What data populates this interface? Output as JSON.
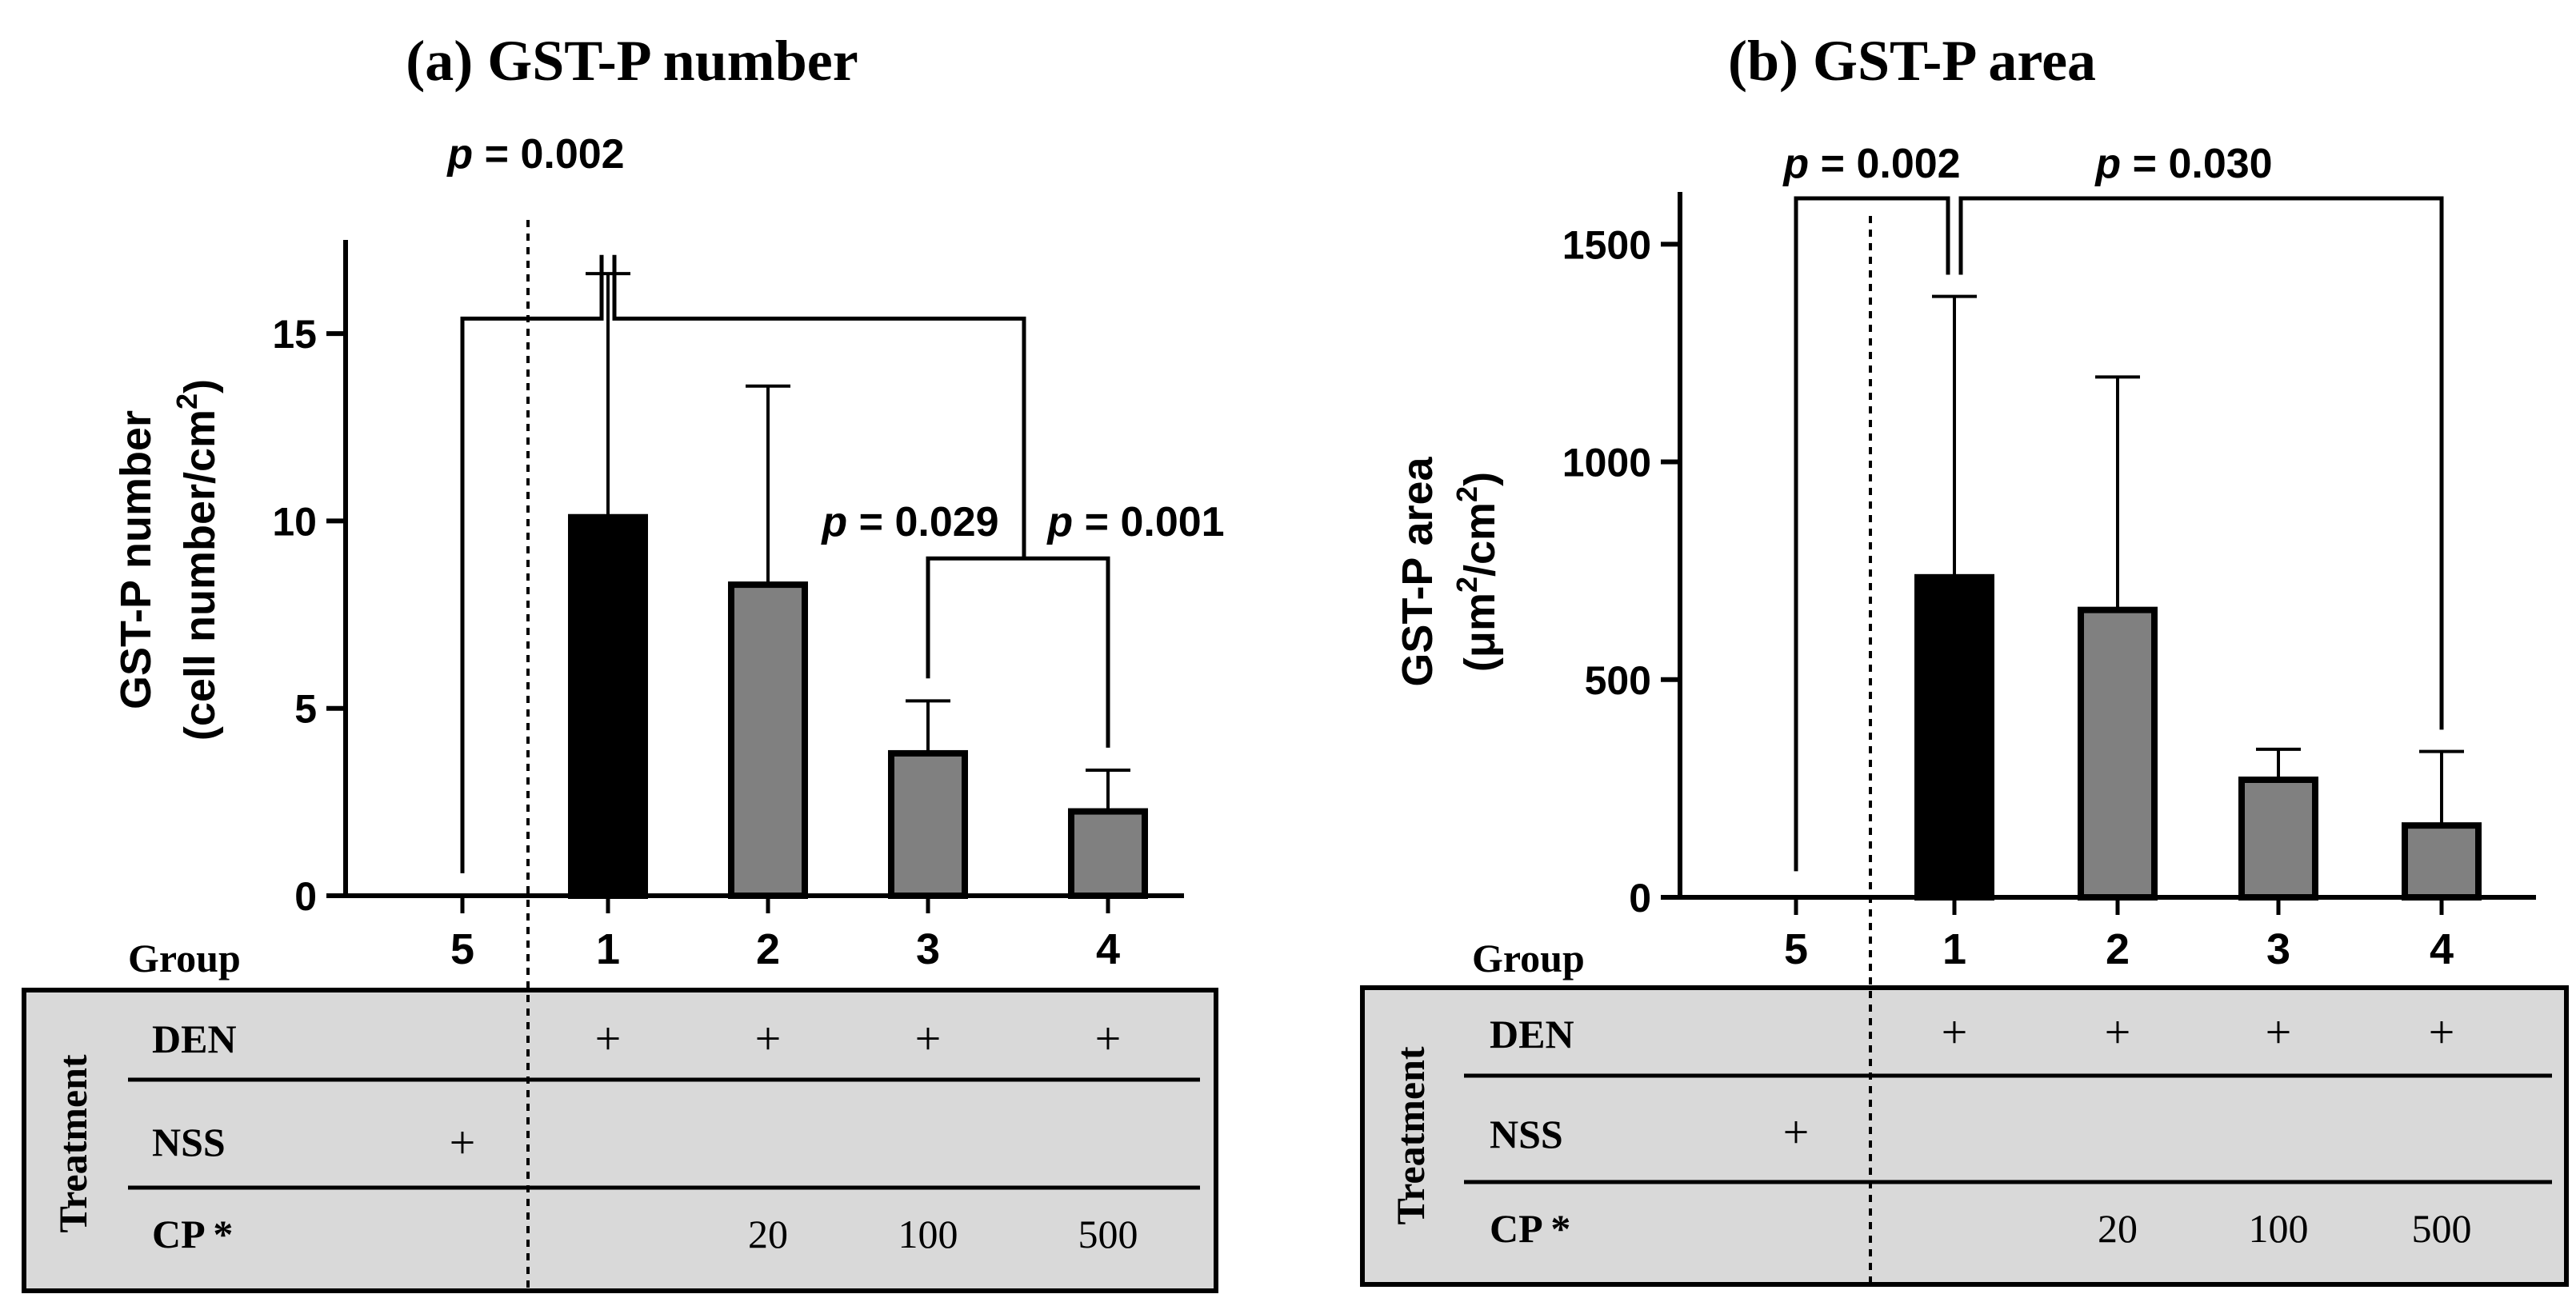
{
  "chart_data": [
    {
      "panel": "a",
      "type": "bar",
      "title": "(a) GST-P number",
      "ylabel_line1": "GST-P number",
      "ylabel_line2_main": "(cell number/cm",
      "ylabel_line2_sup": "2",
      "ylabel_line2_end": ")",
      "ylim": [
        0,
        17.5
      ],
      "yticks": [
        0,
        5,
        10,
        15
      ],
      "group_label": "Group",
      "categories": [
        "5",
        "1",
        "2",
        "3",
        "4"
      ],
      "values": [
        0,
        10.1,
        8.3,
        3.8,
        2.25
      ],
      "errors": [
        0,
        6.5,
        5.3,
        1.4,
        1.1
      ],
      "bar_colors": [
        "#ffffff",
        "#000000",
        "#808080",
        "#808080",
        "#808080"
      ],
      "comparisons": [
        {
          "label": "p = 0.002",
          "from": "5",
          "to": "1",
          "level": 15.4
        },
        {
          "label": "p = 0.029",
          "from": "1",
          "to": "4",
          "level": 15.4
        },
        {
          "label": "p = 0.001",
          "from": "3",
          "to": "4",
          "level": 9.0
        }
      ]
    },
    {
      "panel": "b",
      "type": "bar",
      "title": "(b) GST-P area",
      "ylabel_line1": "GST-P area",
      "ylabel_line2_main": "(μm",
      "ylabel_line2_sup": "2",
      "ylabel_line2_mid": "/cm",
      "ylabel_line2_sup2": "2",
      "ylabel_line2_end": ")",
      "ylim": [
        0,
        1620
      ],
      "yticks": [
        0,
        500,
        1000,
        1500
      ],
      "group_label": "Group",
      "categories": [
        "5",
        "1",
        "2",
        "3",
        "4"
      ],
      "values": [
        0,
        735,
        660,
        270,
        165
      ],
      "errors": [
        0,
        645,
        535,
        70,
        170
      ],
      "bar_colors": [
        "#ffffff",
        "#000000",
        "#808080",
        "#808080",
        "#808080"
      ],
      "comparisons": [
        {
          "label": "p = 0.002",
          "from": "5",
          "to": "1",
          "level": 1590
        },
        {
          "label": "p = 0.030",
          "from": "1",
          "to": "4",
          "level": 1590
        }
      ]
    }
  ],
  "treatment_table": {
    "side_label": "Treatment",
    "rows": [
      {
        "label": "DEN",
        "cells": [
          "",
          "+",
          "+",
          "+",
          "+"
        ]
      },
      {
        "label": "NSS",
        "cells": [
          "+",
          "",
          "",
          "",
          ""
        ]
      },
      {
        "label": "CP *",
        "cells": [
          "",
          "",
          "20",
          "100",
          "500"
        ]
      }
    ],
    "background": "#d9d9d9"
  }
}
